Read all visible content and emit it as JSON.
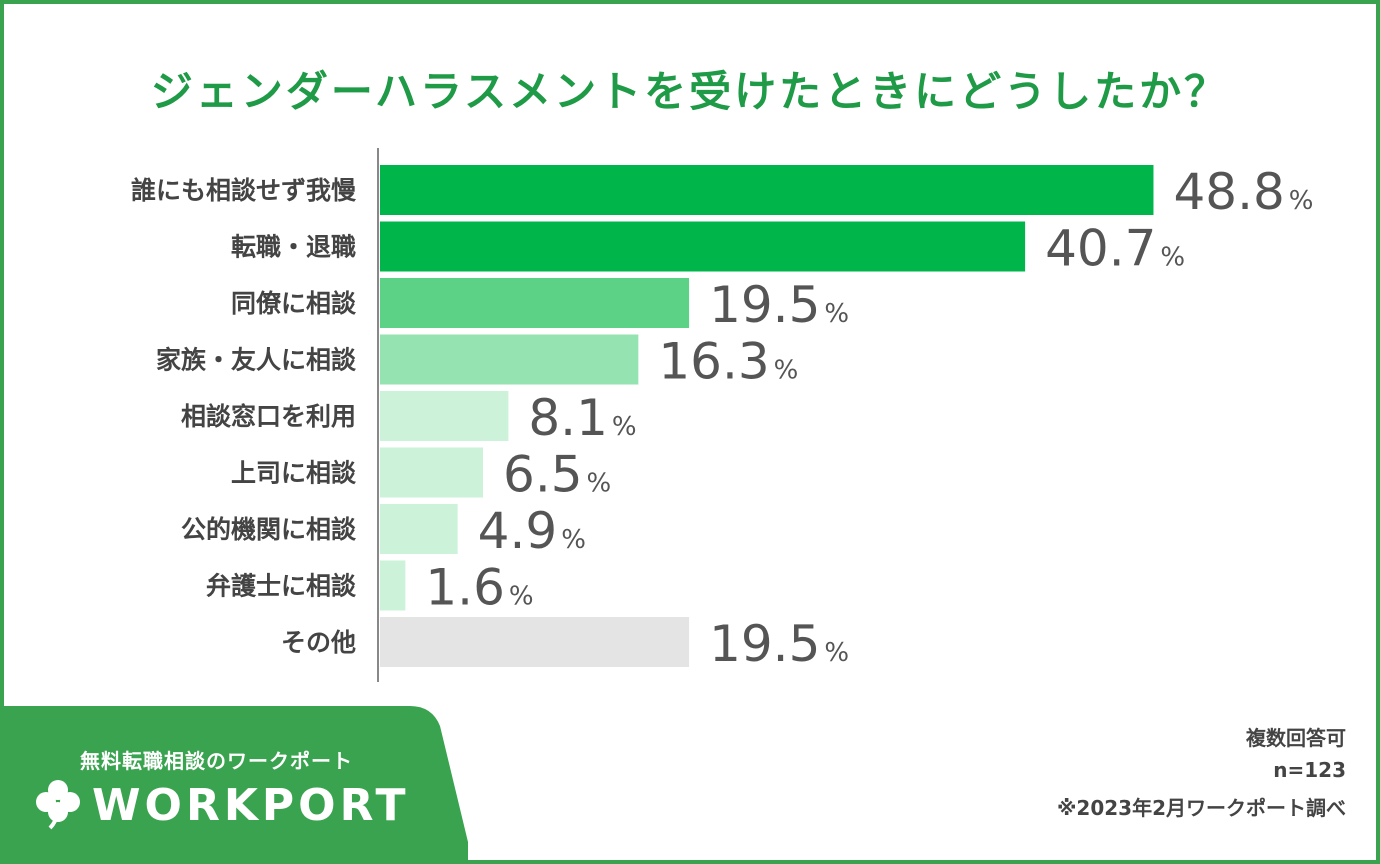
{
  "chart_data": {
    "type": "bar",
    "orientation": "horizontal",
    "title": "ジェンダーハラスメントを受けたときにどうしたか？",
    "categories": [
      "誰にも相談せず我慢",
      "転職・退職",
      "同僚に相談",
      "家族・友人に相談",
      "相談窓口を利用",
      "上司に相談",
      "公的機関に相談",
      "弁護士に相談",
      "その他"
    ],
    "values": [
      48.8,
      40.7,
      19.5,
      16.3,
      8.1,
      6.5,
      4.9,
      1.6,
      19.5
    ],
    "value_labels": [
      "48.8",
      "40.7",
      "19.5",
      "16.3",
      "8.1",
      "6.5",
      "4.9",
      "1.6",
      "19.5"
    ],
    "unit": "%",
    "bar_colors": [
      "#00b64b",
      "#00b64b",
      "#5bd285",
      "#96e3b2",
      "#ccf2da",
      "#ccf2da",
      "#ccf2da",
      "#ccf2da",
      "#e4e4e4"
    ],
    "xlim": [
      0,
      50
    ],
    "grid": false,
    "legend": "none"
  },
  "brand": {
    "tagline": "無料転職相談のワークポート",
    "logo_text": "WORKPORT",
    "color": "#3aa34f"
  },
  "notes": {
    "multi_answer": "複数回答可",
    "sample": "n=123",
    "source": "※2023年2月ワークポート調べ"
  }
}
